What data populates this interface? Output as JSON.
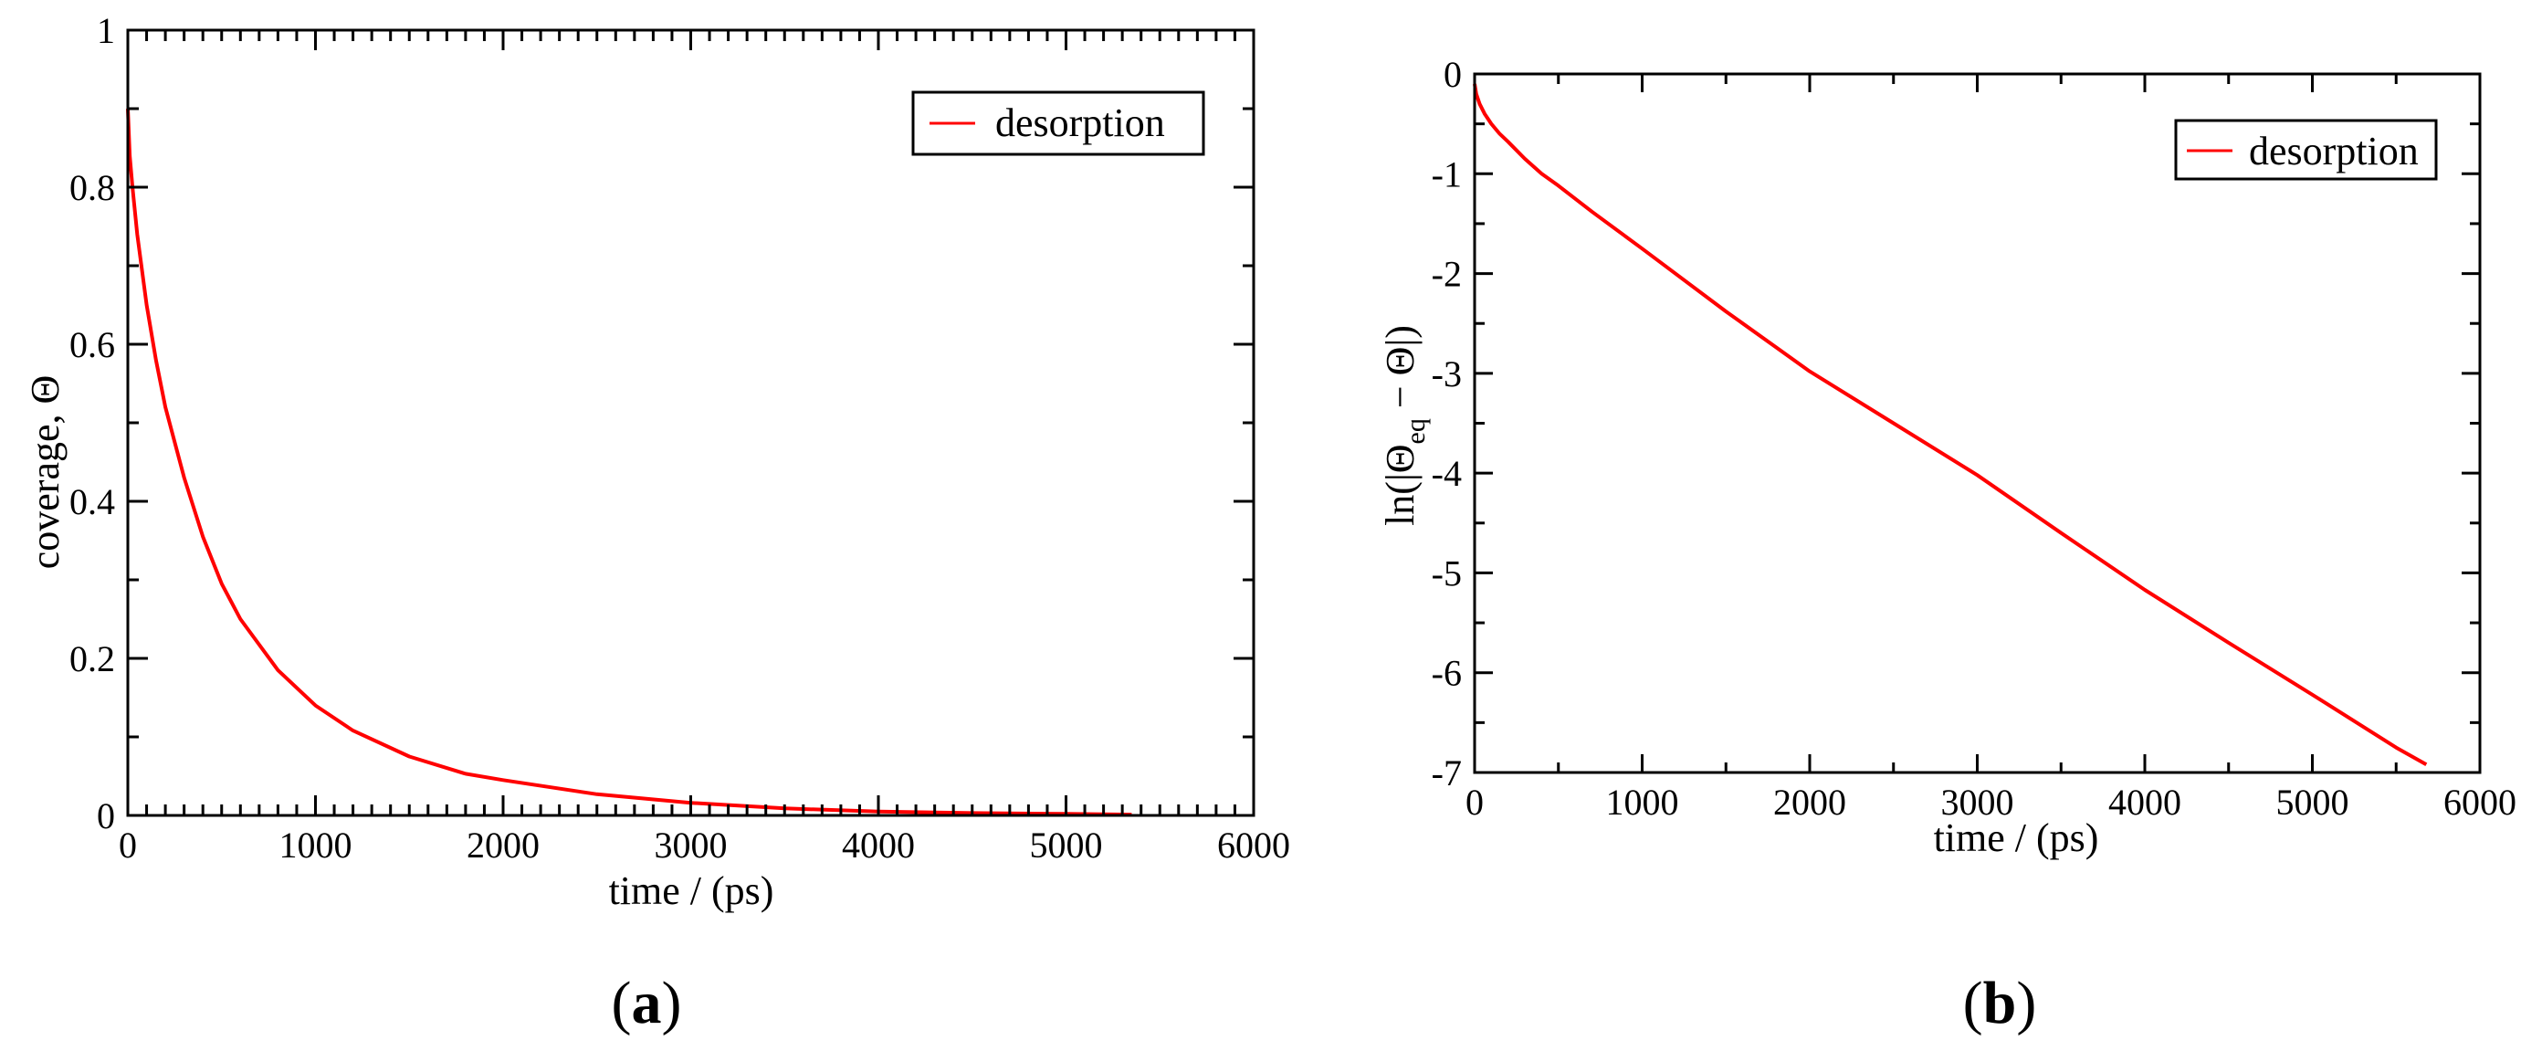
{
  "colors": {
    "series": "#ff0000",
    "axis": "#000000",
    "background": "#ffffff"
  },
  "chart_data": [
    {
      "type": "line",
      "panel_label": {
        "open": "(",
        "letter": "a",
        "close": ")"
      },
      "title": "",
      "xlabel": "time / (ps)",
      "ylabel": "coverage, Θ",
      "xlim": [
        0,
        6000
      ],
      "ylim": [
        0,
        1
      ],
      "xticks": [
        0,
        1000,
        2000,
        3000,
        4000,
        5000,
        6000
      ],
      "xtick_labels": [
        "0",
        "1000",
        "2000",
        "3000",
        "4000",
        "5000",
        "6000"
      ],
      "yticks": [
        0,
        0.2,
        0.4,
        0.6,
        0.8,
        1
      ],
      "ytick_labels": [
        "0",
        "0.2",
        "0.4",
        "0.6",
        "0.8",
        "1"
      ],
      "x_minor_step": 100,
      "y_minor_step": 0.1,
      "grid": false,
      "legend": {
        "position": "top-right",
        "entries": [
          "desorption"
        ]
      },
      "series": [
        {
          "name": "desorption",
          "x": [
            0,
            10,
            25,
            50,
            100,
            150,
            200,
            300,
            400,
            500,
            600,
            800,
            1000,
            1200,
            1500,
            1800,
            2000,
            2500,
            3000,
            3500,
            4000,
            4500,
            5000,
            5350
          ],
          "values": [
            0.9,
            0.84,
            0.8,
            0.74,
            0.65,
            0.58,
            0.52,
            0.43,
            0.355,
            0.295,
            0.25,
            0.185,
            0.14,
            0.108,
            0.075,
            0.053,
            0.045,
            0.027,
            0.016,
            0.009,
            0.005,
            0.003,
            0.002,
            0.001
          ]
        }
      ]
    },
    {
      "type": "line",
      "panel_label": {
        "open": "(",
        "letter": "b",
        "close": ")"
      },
      "title": "",
      "xlabel": "time / (ps)",
      "ylabel": {
        "prefix": "ln(|Θ",
        "sub": "eq",
        "suffix": " − Θ|)"
      },
      "xlim": [
        0,
        6000
      ],
      "ylim": [
        -7,
        0
      ],
      "xticks": [
        0,
        1000,
        2000,
        3000,
        4000,
        5000,
        6000
      ],
      "xtick_labels": [
        "0",
        "1000",
        "2000",
        "3000",
        "4000",
        "5000",
        "6000"
      ],
      "yticks": [
        -7,
        -6,
        -5,
        -4,
        -3,
        -2,
        -1,
        0
      ],
      "ytick_labels": [
        "-7",
        "-6",
        "-5",
        "-4",
        "-3",
        "-2",
        "-1",
        "0"
      ],
      "x_minor_step": 500,
      "y_minor_step": 0.5,
      "grid": false,
      "legend": {
        "position": "top-right",
        "entries": [
          "desorption"
        ]
      },
      "series": [
        {
          "name": "desorption",
          "x": [
            0,
            10,
            30,
            60,
            100,
            150,
            200,
            300,
            400,
            500,
            700,
            1000,
            1500,
            2000,
            2500,
            3000,
            3500,
            4000,
            4500,
            5000,
            5500,
            5680
          ],
          "values": [
            -0.1,
            -0.2,
            -0.3,
            -0.4,
            -0.5,
            -0.6,
            -0.68,
            -0.85,
            -1.0,
            -1.12,
            -1.38,
            -1.75,
            -2.38,
            -2.98,
            -3.5,
            -4.02,
            -4.6,
            -5.17,
            -5.7,
            -6.22,
            -6.75,
            -6.92
          ]
        }
      ]
    }
  ]
}
